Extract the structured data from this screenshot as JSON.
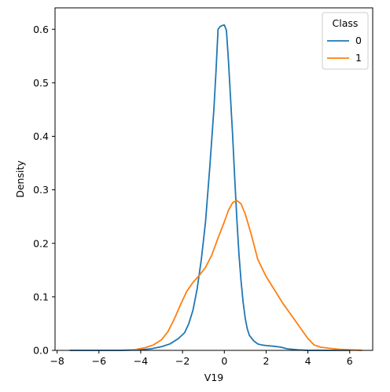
{
  "chart_data": {
    "type": "line",
    "title": "",
    "xlabel": "V19",
    "ylabel": "Density",
    "xlim": [
      -8.1,
      7.1
    ],
    "ylim": [
      0,
      0.64
    ],
    "xticks": [
      -8,
      -6,
      -4,
      -2,
      0,
      2,
      4,
      6
    ],
    "xtick_labels": [
      "−8",
      "−6",
      "−4",
      "−2",
      "0",
      "2",
      "4",
      "6"
    ],
    "yticks": [
      0.0,
      0.1,
      0.2,
      0.3,
      0.4,
      0.5,
      0.6
    ],
    "ytick_labels": [
      "0.0",
      "0.1",
      "0.2",
      "0.3",
      "0.4",
      "0.5",
      "0.6"
    ],
    "grid": false,
    "legend": {
      "title": "Class",
      "position": "top-right"
    },
    "series": [
      {
        "name": "0",
        "color": "#1f77b4",
        "x": [
          -7.4,
          -6.0,
          -5.0,
          -4.0,
          -3.5,
          -3.0,
          -2.6,
          -2.2,
          -1.9,
          -1.7,
          -1.5,
          -1.3,
          -1.1,
          -0.9,
          -0.7,
          -0.5,
          -0.4,
          -0.3,
          -0.2,
          -0.1,
          0.0,
          0.1,
          0.2,
          0.3,
          0.4,
          0.5,
          0.6,
          0.7,
          0.8,
          0.9,
          1.0,
          1.1,
          1.2,
          1.4,
          1.6,
          1.8,
          2.0,
          2.3,
          2.7,
          3.0,
          3.5,
          4.0,
          5.0,
          6.0
        ],
        "y": [
          0.0,
          0.0,
          0.0,
          0.001,
          0.003,
          0.007,
          0.012,
          0.022,
          0.033,
          0.05,
          0.075,
          0.115,
          0.17,
          0.24,
          0.34,
          0.45,
          0.52,
          0.6,
          0.605,
          0.607,
          0.608,
          0.598,
          0.54,
          0.47,
          0.4,
          0.32,
          0.245,
          0.18,
          0.13,
          0.09,
          0.06,
          0.04,
          0.028,
          0.018,
          0.012,
          0.01,
          0.009,
          0.008,
          0.006,
          0.003,
          0.001,
          0.0,
          0.0,
          0.0
        ]
      },
      {
        "name": "1",
        "color": "#ff7f0e",
        "x": [
          -4.2,
          -3.8,
          -3.4,
          -3.0,
          -2.7,
          -2.4,
          -2.1,
          -1.8,
          -1.5,
          -1.2,
          -0.9,
          -0.6,
          -0.3,
          0.0,
          0.2,
          0.4,
          0.6,
          0.8,
          1.0,
          1.3,
          1.6,
          2.0,
          2.4,
          2.8,
          3.2,
          3.6,
          4.0,
          4.3,
          4.6,
          5.0,
          5.5,
          6.0,
          6.6
        ],
        "y": [
          0.002,
          0.005,
          0.01,
          0.02,
          0.035,
          0.058,
          0.085,
          0.11,
          0.127,
          0.14,
          0.155,
          0.178,
          0.21,
          0.24,
          0.262,
          0.276,
          0.28,
          0.274,
          0.255,
          0.215,
          0.17,
          0.138,
          0.113,
          0.088,
          0.066,
          0.044,
          0.022,
          0.01,
          0.006,
          0.004,
          0.002,
          0.001,
          0.0
        ]
      }
    ]
  }
}
